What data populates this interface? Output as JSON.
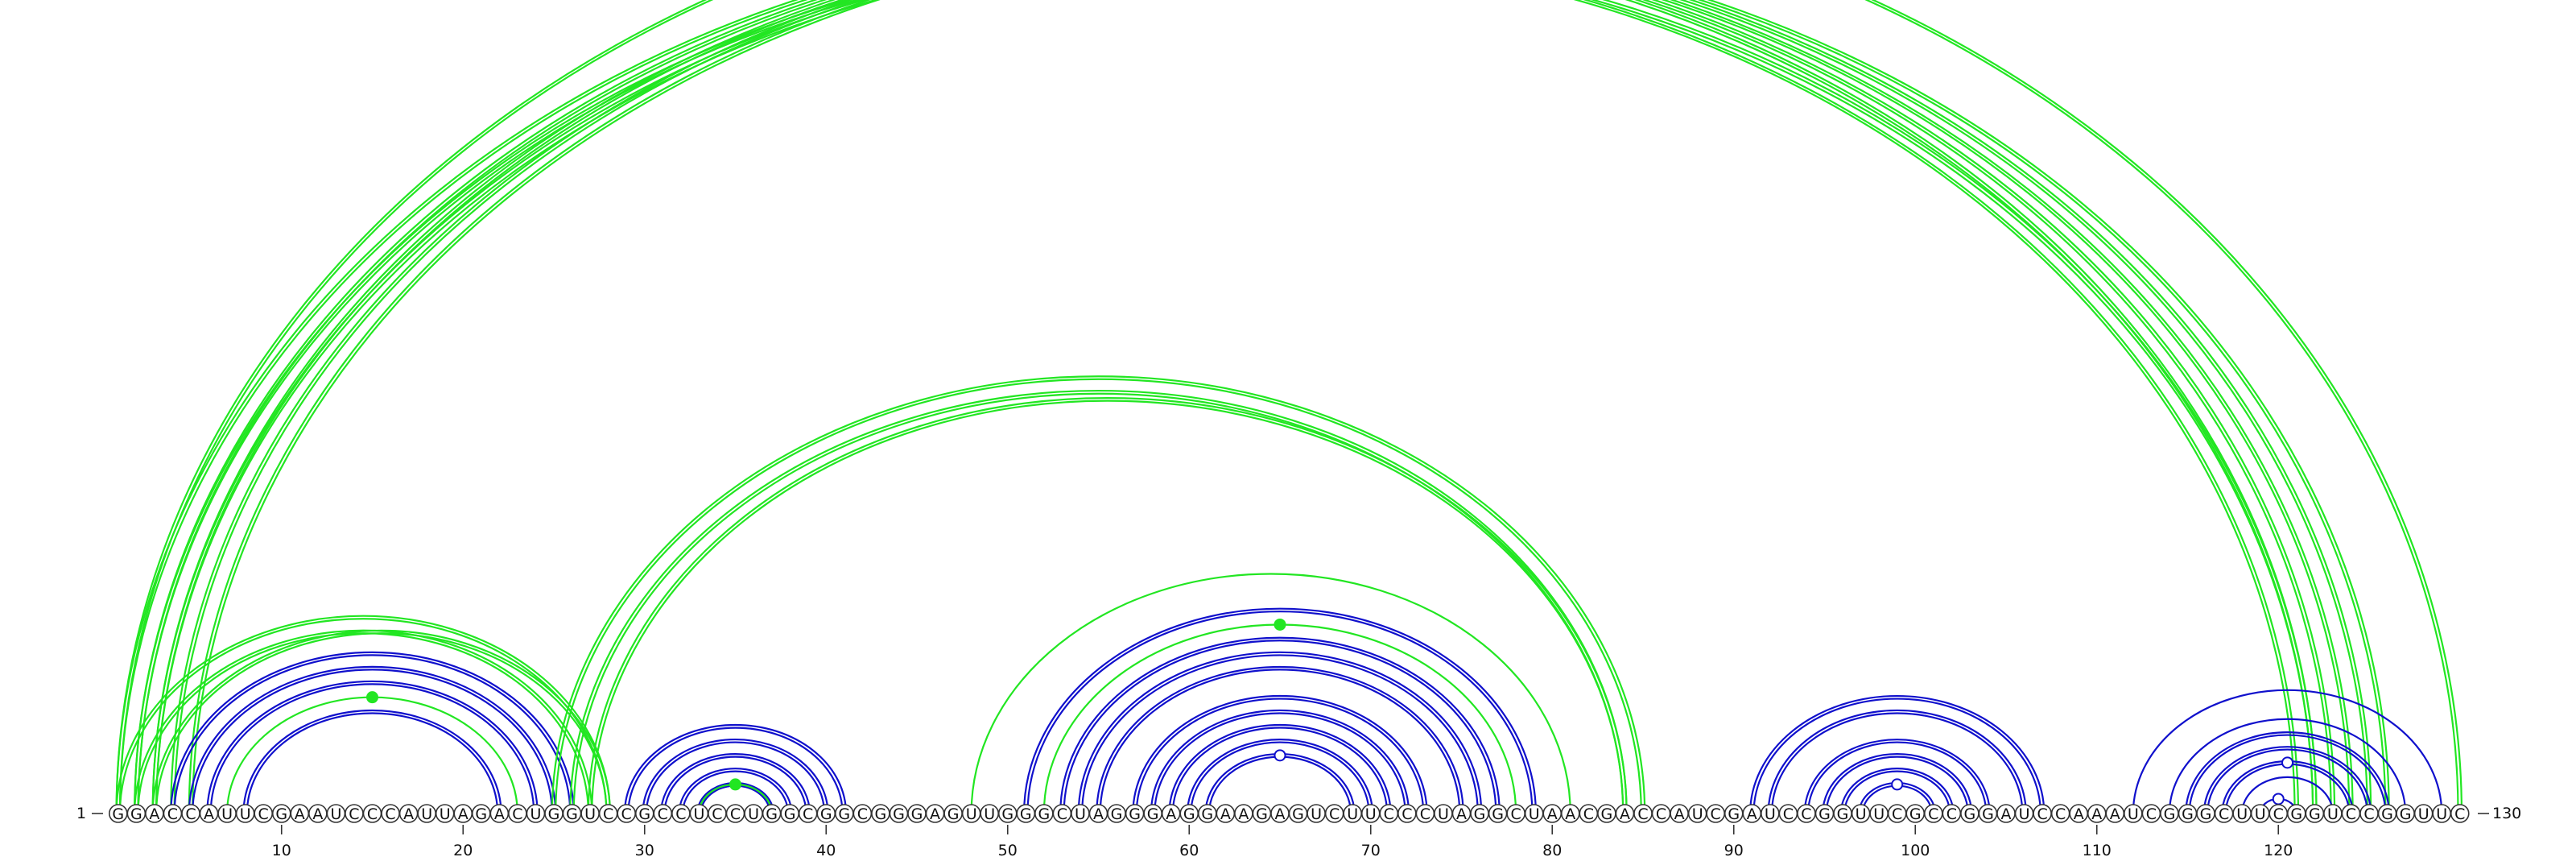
{
  "diagram": {
    "sequence": "GGACCAUUCGAAUCCCAUUAGACUGGUCCGCCUCCUGGCGGCGGGAGUUGGGCUAGGGAGGAAGAGUCUUCCCUAGGCUAACGACCAUCGAUCCGGUUCGCCGGAUCCAAAUCGGGCUUCGGUCCGGUUC",
    "start_label": "1",
    "end_label": "130",
    "ticks": [
      "10",
      "20",
      "30",
      "40",
      "50",
      "60",
      "70",
      "80",
      "90",
      "100",
      "110",
      "120"
    ],
    "colors": {
      "green": "#22e622",
      "blue": "#1010cc"
    },
    "helices": [
      {
        "i": 1,
        "j": 122,
        "len": 2,
        "color": "green",
        "strands": 2
      },
      {
        "i": 2,
        "j": 123,
        "len": 2,
        "color": "green",
        "strands": 2
      },
      {
        "i": 3,
        "j": 124,
        "len": 1,
        "color": "green",
        "strands": 2
      },
      {
        "i": 4,
        "j": 125,
        "len": 1,
        "color": "green",
        "strands": 2
      },
      {
        "i": 5,
        "j": 126,
        "len": 1,
        "color": "green",
        "strands": 2
      },
      {
        "i": 1,
        "j": 130,
        "len": 1,
        "color": "green",
        "strands": 2,
        "marker": "open"
      },
      {
        "i": 1,
        "j": 28,
        "len": 2,
        "color": "green",
        "strands": 2
      },
      {
        "i": 3,
        "j": 28,
        "len": 1,
        "color": "green",
        "strands": 2
      },
      {
        "i": 4,
        "j": 26,
        "len": 3,
        "color": "blue",
        "strands": 2
      },
      {
        "i": 7,
        "j": 23,
        "len": 1,
        "color": "green",
        "strands": 1,
        "marker": "filled"
      },
      {
        "i": 8,
        "j": 22,
        "len": 1,
        "color": "blue",
        "strands": 2
      },
      {
        "i": 25,
        "j": 85,
        "len": 2,
        "color": "green",
        "strands": 2
      },
      {
        "i": 27,
        "j": 84,
        "len": 1,
        "color": "green",
        "strands": 2
      },
      {
        "i": 29,
        "j": 41,
        "len": 5,
        "color": "blue",
        "strands": 2
      },
      {
        "i": 33,
        "j": 37,
        "len": 1,
        "color": "green",
        "strands": 1,
        "marker": "filled"
      },
      {
        "i": 48,
        "j": 81,
        "len": 1,
        "color": "green",
        "strands": 1
      },
      {
        "i": 51,
        "j": 79,
        "len": 1,
        "color": "blue",
        "strands": 2
      },
      {
        "i": 52,
        "j": 78,
        "len": 1,
        "color": "green",
        "strands": 1,
        "marker": "filled"
      },
      {
        "i": 53,
        "j": 77,
        "len": 3,
        "color": "blue",
        "strands": 2
      },
      {
        "i": 57,
        "j": 73,
        "len": 5,
        "color": "blue",
        "strands": 2,
        "marker": "open"
      },
      {
        "i": 91,
        "j": 107,
        "len": 2,
        "color": "blue",
        "strands": 2
      },
      {
        "i": 94,
        "j": 104,
        "len": 4,
        "color": "blue",
        "strands": 2,
        "marker": "open"
      },
      {
        "i": 112,
        "j": 129,
        "len": 1,
        "color": "blue",
        "strands": 1
      },
      {
        "i": 114,
        "j": 127,
        "len": 1,
        "color": "blue",
        "strands": 1
      },
      {
        "i": 115,
        "j": 126,
        "len": 3,
        "color": "blue",
        "strands": 2,
        "marker": "open"
      },
      {
        "i": 118,
        "j": 123,
        "len": 1,
        "color": "blue",
        "strands": 1
      },
      {
        "i": 119,
        "j": 121,
        "len": 1,
        "color": "blue",
        "strands": 1,
        "marker": "open"
      }
    ]
  }
}
